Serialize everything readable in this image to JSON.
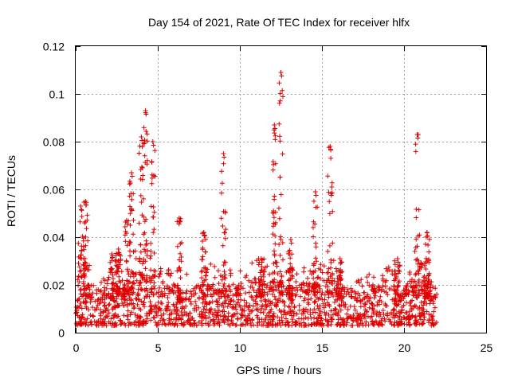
{
  "chart_data": {
    "type": "scatter",
    "title": "Day 154 of 2021, Rate Of TEC Index for receiver hlfx",
    "xlabel": "GPS time / hours",
    "ylabel": "ROTI / TECUs",
    "xlim": [
      0,
      25
    ],
    "ylim": [
      0,
      0.12
    ],
    "x_ticks": [
      0,
      5,
      10,
      15,
      20,
      25
    ],
    "x_tick_labels": [
      "0",
      "5",
      "10",
      "15",
      "20",
      "25"
    ],
    "y_ticks": [
      0,
      0.02,
      0.04,
      0.06,
      0.08,
      0.1,
      0.12
    ],
    "y_tick_labels": [
      "0",
      "0.02",
      "0.04",
      "0.06",
      "0.08",
      "0.1",
      "0.12"
    ],
    "grid": true,
    "marker": "plus",
    "color": "#e00000",
    "data_extent_hours": [
      0,
      22
    ],
    "series": [
      {
        "name": "ROTI",
        "baseline": [
          [
            0.0,
            0.012
          ],
          [
            0.5,
            0.016
          ],
          [
            1.0,
            0.014
          ],
          [
            1.5,
            0.012
          ],
          [
            2.0,
            0.013
          ],
          [
            2.5,
            0.016
          ],
          [
            3.0,
            0.015
          ],
          [
            3.5,
            0.017
          ],
          [
            4.0,
            0.018
          ],
          [
            4.5,
            0.017
          ],
          [
            5.0,
            0.014
          ],
          [
            5.5,
            0.013
          ],
          [
            6.0,
            0.014
          ],
          [
            6.5,
            0.013
          ],
          [
            7.0,
            0.012
          ],
          [
            7.5,
            0.014
          ],
          [
            8.0,
            0.015
          ],
          [
            8.5,
            0.014
          ],
          [
            9.0,
            0.015
          ],
          [
            9.5,
            0.013
          ],
          [
            10.0,
            0.013
          ],
          [
            10.5,
            0.014
          ],
          [
            11.0,
            0.016
          ],
          [
            11.5,
            0.015
          ],
          [
            12.0,
            0.015
          ],
          [
            12.5,
            0.016
          ],
          [
            13.0,
            0.014
          ],
          [
            13.5,
            0.014
          ],
          [
            14.0,
            0.015
          ],
          [
            14.5,
            0.016
          ],
          [
            15.0,
            0.016
          ],
          [
            15.5,
            0.017
          ],
          [
            16.0,
            0.015
          ],
          [
            16.5,
            0.013
          ],
          [
            17.0,
            0.012
          ],
          [
            17.5,
            0.012
          ],
          [
            18.0,
            0.013
          ],
          [
            18.5,
            0.013
          ],
          [
            19.0,
            0.014
          ],
          [
            19.5,
            0.013
          ],
          [
            20.0,
            0.013
          ],
          [
            20.5,
            0.016
          ],
          [
            21.0,
            0.015
          ],
          [
            21.5,
            0.014
          ],
          [
            22.0,
            0.013
          ]
        ],
        "bursts": [
          [
            0.3,
            0.4,
            0.053
          ],
          [
            0.6,
            0.3,
            0.055
          ],
          [
            2.2,
            0.3,
            0.033
          ],
          [
            2.6,
            0.3,
            0.035
          ],
          [
            3.1,
            0.3,
            0.047
          ],
          [
            3.4,
            0.3,
            0.067
          ],
          [
            4.0,
            0.3,
            0.082
          ],
          [
            4.25,
            0.25,
            0.093
          ],
          [
            4.7,
            0.3,
            0.08
          ],
          [
            6.3,
            0.3,
            0.048
          ],
          [
            7.8,
            0.3,
            0.042
          ],
          [
            9.0,
            0.3,
            0.075
          ],
          [
            11.3,
            0.4,
            0.031
          ],
          [
            12.1,
            0.2,
            0.087
          ],
          [
            12.5,
            0.25,
            0.109
          ],
          [
            13.1,
            0.3,
            0.039
          ],
          [
            14.6,
            0.3,
            0.059
          ],
          [
            15.5,
            0.3,
            0.078
          ],
          [
            16.1,
            0.3,
            0.031
          ],
          [
            19.6,
            0.4,
            0.031
          ],
          [
            20.8,
            0.3,
            0.083
          ],
          [
            21.4,
            0.3,
            0.042
          ]
        ]
      }
    ]
  }
}
